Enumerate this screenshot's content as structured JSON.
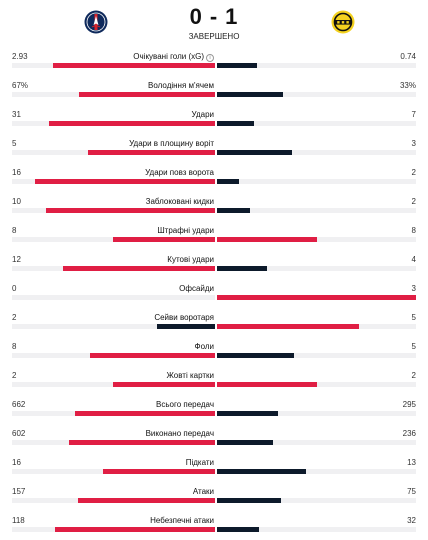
{
  "match": {
    "home_team_icon": "psg-crest-icon",
    "away_team_icon": "bvb-crest-icon",
    "home_score": "0",
    "away_score": "1",
    "separator": "-",
    "status": "ЗАВЕРШЕНО"
  },
  "colors": {
    "leader": "#e01e44",
    "trailer": "#0d1a2b",
    "track": "#f0f0f2"
  },
  "stats": [
    {
      "label": "Очікувані голи (xG)",
      "home": "2.93",
      "away": "0.74",
      "home_value": 2.93,
      "away_value": 0.74,
      "info_icon": "info-icon"
    },
    {
      "label": "Володіння м'ячем",
      "home": "67%",
      "away": "33%",
      "home_value": 67,
      "away_value": 33
    },
    {
      "label": "Удари",
      "home": "31",
      "away": "7",
      "home_value": 31,
      "away_value": 7
    },
    {
      "label": "Удари в площину воріт",
      "home": "5",
      "away": "3",
      "home_value": 5,
      "away_value": 3
    },
    {
      "label": "Удари повз ворота",
      "home": "16",
      "away": "2",
      "home_value": 16,
      "away_value": 2
    },
    {
      "label": "Заблоковані кидки",
      "home": "10",
      "away": "2",
      "home_value": 10,
      "away_value": 2
    },
    {
      "label": "Штрафні удари",
      "home": "8",
      "away": "8",
      "home_value": 8,
      "away_value": 8
    },
    {
      "label": "Кутові удари",
      "home": "12",
      "away": "4",
      "home_value": 12,
      "away_value": 4
    },
    {
      "label": "Офсайди",
      "home": "0",
      "away": "3",
      "home_value": 0,
      "away_value": 3
    },
    {
      "label": "Сейви воротаря",
      "home": "2",
      "away": "5",
      "home_value": 2,
      "away_value": 5
    },
    {
      "label": "Фоли",
      "home": "8",
      "away": "5",
      "home_value": 8,
      "away_value": 5
    },
    {
      "label": "Жовті картки",
      "home": "2",
      "away": "2",
      "home_value": 2,
      "away_value": 2
    },
    {
      "label": "Всього передач",
      "home": "662",
      "away": "295",
      "home_value": 662,
      "away_value": 295
    },
    {
      "label": "Виконано передач",
      "home": "602",
      "away": "236",
      "home_value": 602,
      "away_value": 236
    },
    {
      "label": "Підкати",
      "home": "16",
      "away": "13",
      "home_value": 16,
      "away_value": 13
    },
    {
      "label": "Атаки",
      "home": "157",
      "away": "75",
      "home_value": 157,
      "away_value": 75
    },
    {
      "label": "Небезпечні атаки",
      "home": "118",
      "away": "32",
      "home_value": 118,
      "away_value": 32
    }
  ]
}
